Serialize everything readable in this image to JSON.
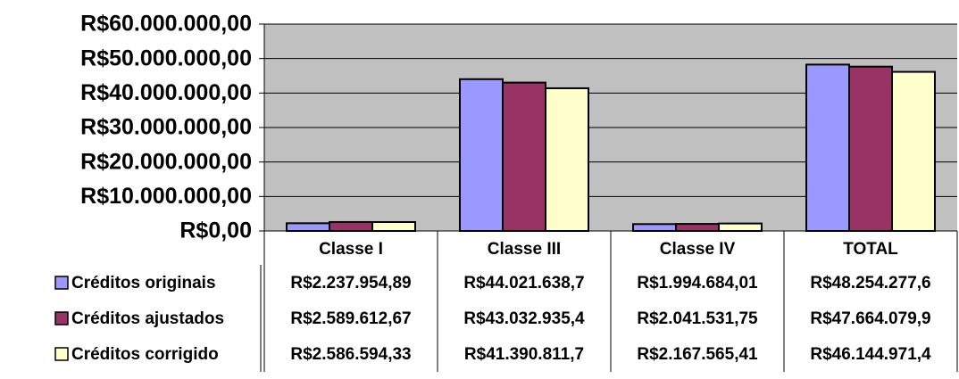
{
  "chart_data": {
    "type": "bar",
    "categories": [
      "Classe I",
      "Classe III",
      "Classe IV",
      "TOTAL"
    ],
    "series": [
      {
        "name": "Créditos originais",
        "color": "#9999ff",
        "values": [
          2237954.89,
          44021638.7,
          1994684.01,
          48254277.6
        ],
        "value_labels": [
          "R$2.237.954,89",
          "R$44.021.638,7",
          "R$1.994.684,01",
          "R$48.254.277,6"
        ]
      },
      {
        "name": "Créditos ajustados",
        "color": "#993366",
        "values": [
          2589612.67,
          43032935.4,
          2041531.75,
          47664079.9
        ],
        "value_labels": [
          "R$2.589.612,67",
          "R$43.032.935,4",
          "R$2.041.531,75",
          "R$47.664.079,9"
        ]
      },
      {
        "name": "Créditos corrigido",
        "color": "#ffffcc",
        "values": [
          2586594.33,
          41390811.7,
          2167565.41,
          46144971.4
        ],
        "value_labels": [
          "R$2.586.594,33",
          "R$41.390.811,7",
          "R$2.167.565,41",
          "R$46.144.971,4"
        ]
      }
    ],
    "ylim": [
      0,
      60000000
    ],
    "yticks": [
      {
        "value": 0,
        "label": "R$0,00"
      },
      {
        "value": 10000000,
        "label": "R$10.000.000,00"
      },
      {
        "value": 20000000,
        "label": "R$20.000.000,00"
      },
      {
        "value": 30000000,
        "label": "R$30.000.000,00"
      },
      {
        "value": 40000000,
        "label": "R$40.000.000,00"
      },
      {
        "value": 50000000,
        "label": "R$50.000.000,00"
      },
      {
        "value": 60000000,
        "label": "R$60.000.000,00"
      }
    ],
    "grid": true
  }
}
